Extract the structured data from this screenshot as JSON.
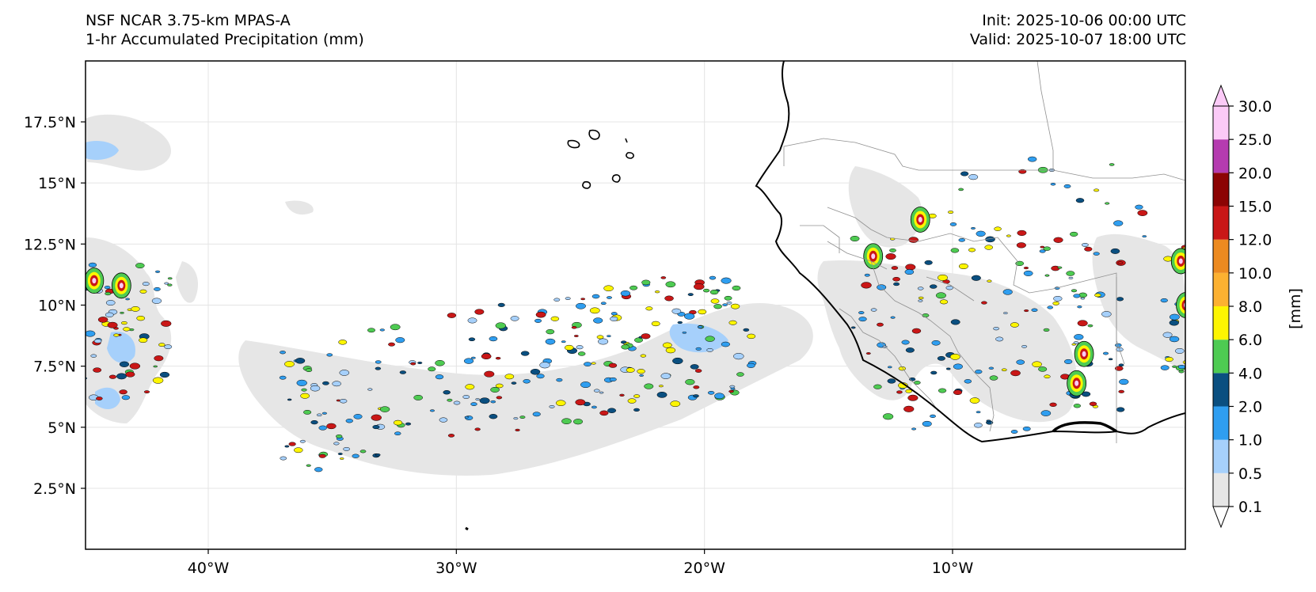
{
  "title": {
    "model": "NSF NCAR 3.75-km MPAS-A",
    "field": "1-hr Accumulated Precipitation (mm)",
    "init": "Init: 2025-10-06 00:00 UTC",
    "valid": "Valid: 2025-10-07 18:00 UTC"
  },
  "map": {
    "extent": {
      "lon": [
        -45,
        0
      ],
      "lat": [
        0,
        20
      ]
    },
    "lat_ticks": [
      {
        "value": 2.5,
        "label": "2.5°N"
      },
      {
        "value": 5,
        "label": "5°N"
      },
      {
        "value": 7.5,
        "label": "7.5°N"
      },
      {
        "value": 10,
        "label": "10°N"
      },
      {
        "value": 12.5,
        "label": "12.5°N"
      },
      {
        "value": 15,
        "label": "15°N"
      },
      {
        "value": 17.5,
        "label": "17.5°N"
      }
    ],
    "lon_ticks": [
      {
        "value": -40,
        "label": "40°W"
      },
      {
        "value": -30,
        "label": "30°W"
      },
      {
        "value": -20,
        "label": "20°W"
      },
      {
        "value": -10,
        "label": "10°W"
      }
    ]
  },
  "colorbar": {
    "unit_label": "[mm]",
    "levels": [
      "0.1",
      "0.5",
      "1.0",
      "2.0",
      "4.0",
      "6.0",
      "8.0",
      "10.0",
      "12.0",
      "15.0",
      "20.0",
      "25.0",
      "30.0"
    ],
    "colors": [
      "#e6e6e6",
      "#a6d0fb",
      "#2f9ef0",
      "#0a4f80",
      "#4ecb52",
      "#fdf501",
      "#fcb131",
      "#ec8a20",
      "#c91717",
      "#8c0404",
      "#b53bb0",
      "#fbcaf7"
    ]
  }
}
